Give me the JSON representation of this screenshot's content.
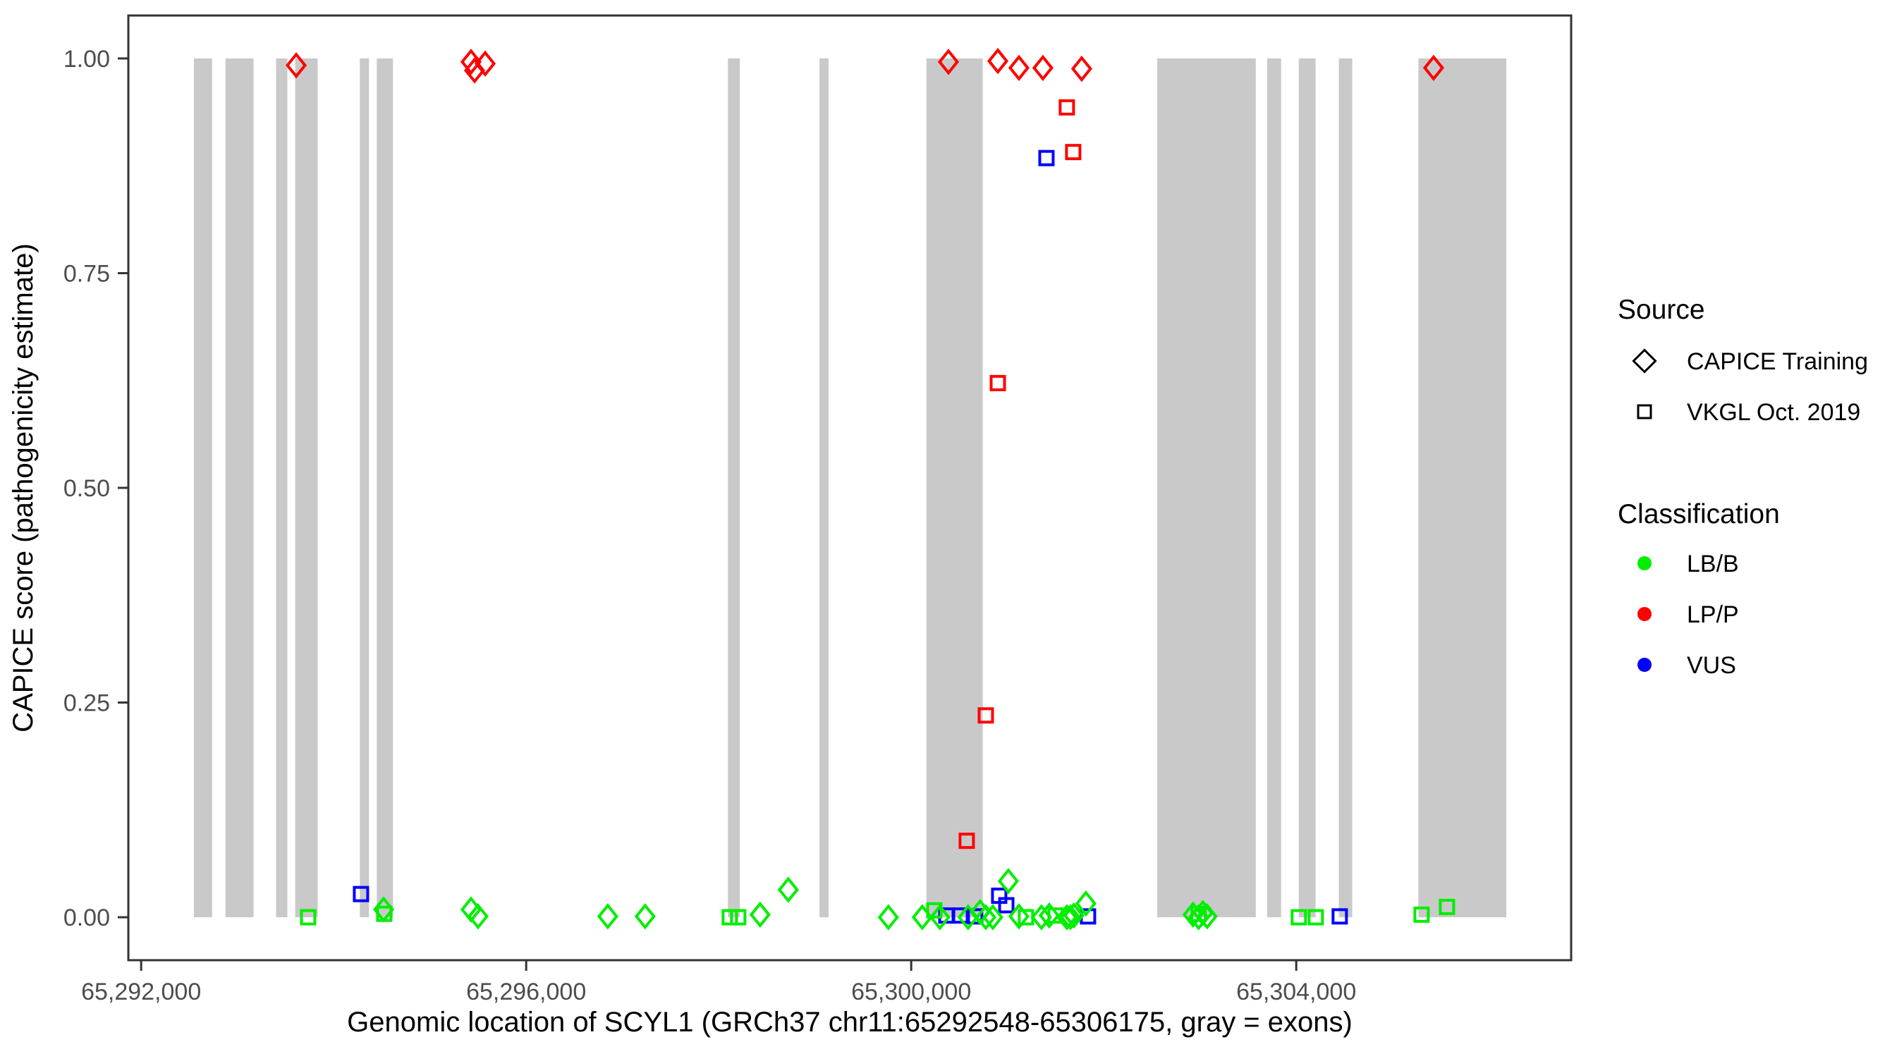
{
  "figure": {
    "x_axis_title": "Genomic location of SCYL1 (GRCh37 chr11:65292548-65306175, gray = exons)",
    "y_axis_title": "CAPICE score (pathogenicity estimate)"
  },
  "colors": {
    "lb_b": "#00ee00",
    "lp_p": "#ff0000",
    "vus": "#0000ff",
    "exon_gray": "#c9c9c9",
    "axis_line": "#333333",
    "tick_text": "#4d4d4d"
  },
  "legend": {
    "source": {
      "title": "Source",
      "items": [
        {
          "shape": "diamond",
          "label": "CAPICE Training"
        },
        {
          "shape": "square",
          "label": "VKGL Oct. 2019"
        }
      ]
    },
    "classification": {
      "title": "Classification",
      "items": [
        {
          "color_key": "lb_b",
          "label": "LB/B"
        },
        {
          "color_key": "lp_p",
          "label": "LP/P"
        },
        {
          "color_key": "vus",
          "label": "VUS"
        }
      ]
    }
  },
  "chart_data": {
    "type": "scatter",
    "xlabel": "Genomic location of SCYL1 (GRCh37 chr11:65292548-65306175, gray = exons)",
    "ylabel": "CAPICE score (pathogenicity estimate)",
    "x_domain": [
      65291867,
      65306856
    ],
    "y_domain": [
      -0.05,
      1.05
    ],
    "grid": false,
    "legend_position": "right",
    "x_ticks": [
      {
        "value": 65292000,
        "label": "65,292,000"
      },
      {
        "value": 65296000,
        "label": "65,296,000"
      },
      {
        "value": 65300000,
        "label": "65,300,000"
      },
      {
        "value": 65304000,
        "label": "65,304,000"
      }
    ],
    "y_ticks": [
      {
        "value": 0.0,
        "label": "0.00"
      },
      {
        "value": 0.25,
        "label": "0.25"
      },
      {
        "value": 0.5,
        "label": "0.50"
      },
      {
        "value": 0.75,
        "label": "0.75"
      },
      {
        "value": 1.0,
        "label": "1.00"
      }
    ],
    "exons_bp": [
      [
        65292548,
        65292737
      ],
      [
        65292876,
        65293168
      ],
      [
        65293402,
        65293519
      ],
      [
        65293600,
        65293834
      ],
      [
        65294272,
        65294367
      ],
      [
        65294448,
        65294616
      ],
      [
        65298096,
        65298220
      ],
      [
        65299047,
        65299142
      ],
      [
        65300158,
        65300743
      ],
      [
        65302556,
        65303580
      ],
      [
        65303697,
        65303843
      ],
      [
        65304026,
        65304201
      ],
      [
        65304443,
        65304582
      ],
      [
        65305269,
        65306183
      ]
    ],
    "exon_y_span": [
      0.0,
      1.0
    ],
    "series": [
      {
        "name": "CAPICE Training / LP/P",
        "source": "CAPICE Training",
        "classification": "LP/P",
        "shape": "diamond",
        "color_key": "lp_p",
        "points": [
          {
            "x": 65293611,
            "y": 0.992
          },
          {
            "x": 65295427,
            "y": 0.996
          },
          {
            "x": 65295464,
            "y": 0.986
          },
          {
            "x": 65295574,
            "y": 0.994
          },
          {
            "x": 65300387,
            "y": 0.996
          },
          {
            "x": 65300900,
            "y": 0.997
          },
          {
            "x": 65301119,
            "y": 0.989
          },
          {
            "x": 65301368,
            "y": 0.989
          },
          {
            "x": 65301771,
            "y": 0.988
          },
          {
            "x": 65305427,
            "y": 0.989
          }
        ]
      },
      {
        "name": "VKGL Oct. 2019 / LP/P",
        "source": "VKGL Oct. 2019",
        "classification": "LP/P",
        "shape": "square",
        "color_key": "lp_p",
        "points": [
          {
            "x": 65301617,
            "y": 0.943
          },
          {
            "x": 65301683,
            "y": 0.891
          },
          {
            "x": 65300900,
            "y": 0.622
          },
          {
            "x": 65300775,
            "y": 0.235
          },
          {
            "x": 65300577,
            "y": 0.089
          }
        ]
      },
      {
        "name": "VKGL Oct. 2019 / VUS",
        "source": "VKGL Oct. 2019",
        "classification": "VUS",
        "shape": "square",
        "color_key": "vus",
        "points": [
          {
            "x": 65301405,
            "y": 0.884
          },
          {
            "x": 65294284,
            "y": 0.027
          },
          {
            "x": 65300365,
            "y": 0.002
          },
          {
            "x": 65300512,
            "y": 0.002
          },
          {
            "x": 65300665,
            "y": 0.001
          },
          {
            "x": 65300914,
            "y": 0.025
          },
          {
            "x": 65300988,
            "y": 0.014
          },
          {
            "x": 65301837,
            "y": 0.001
          },
          {
            "x": 65304452,
            "y": 0.001
          }
        ]
      },
      {
        "name": "CAPICE Training / LB/B",
        "source": "CAPICE Training",
        "classification": "LB/B",
        "shape": "diamond",
        "color_key": "lb_b",
        "points": [
          {
            "x": 65294519,
            "y": 0.009
          },
          {
            "x": 65295427,
            "y": 0.009
          },
          {
            "x": 65295500,
            "y": 0.001
          },
          {
            "x": 65296848,
            "y": 0.001
          },
          {
            "x": 65297236,
            "y": 0.001
          },
          {
            "x": 65298430,
            "y": 0.003
          },
          {
            "x": 65298723,
            "y": 0.032
          },
          {
            "x": 65299763,
            "y": 0.0
          },
          {
            "x": 65300115,
            "y": 0.0
          },
          {
            "x": 65300298,
            "y": 0.0
          },
          {
            "x": 65300591,
            "y": 0.0
          },
          {
            "x": 65300716,
            "y": 0.006
          },
          {
            "x": 65300775,
            "y": 0.0
          },
          {
            "x": 65300848,
            "y": 0.0
          },
          {
            "x": 65301009,
            "y": 0.042
          },
          {
            "x": 65301119,
            "y": 0.001
          },
          {
            "x": 65301353,
            "y": 0.0
          },
          {
            "x": 65301434,
            "y": 0.002
          },
          {
            "x": 65301617,
            "y": 0.0
          },
          {
            "x": 65301653,
            "y": 0.0
          },
          {
            "x": 65301690,
            "y": 0.002
          },
          {
            "x": 65301815,
            "y": 0.016
          },
          {
            "x": 65302928,
            "y": 0.003
          },
          {
            "x": 65302986,
            "y": 0.0
          },
          {
            "x": 65303030,
            "y": 0.005
          },
          {
            "x": 65303074,
            "y": 0.001
          }
        ]
      },
      {
        "name": "VKGL Oct. 2019 / LB/B",
        "source": "VKGL Oct. 2019",
        "classification": "LB/B",
        "shape": "square",
        "color_key": "lb_b",
        "points": [
          {
            "x": 65293735,
            "y": 0.0
          },
          {
            "x": 65294526,
            "y": 0.004
          },
          {
            "x": 65298115,
            "y": 0.0
          },
          {
            "x": 65298203,
            "y": 0.0
          },
          {
            "x": 65300240,
            "y": 0.008
          },
          {
            "x": 65301192,
            "y": 0.0
          },
          {
            "x": 65301500,
            "y": 0.002
          },
          {
            "x": 65302986,
            "y": 0.004
          },
          {
            "x": 65304027,
            "y": 0.0
          },
          {
            "x": 65304203,
            "y": 0.0
          },
          {
            "x": 65305302,
            "y": 0.003
          },
          {
            "x": 65305566,
            "y": 0.012
          }
        ]
      }
    ]
  }
}
